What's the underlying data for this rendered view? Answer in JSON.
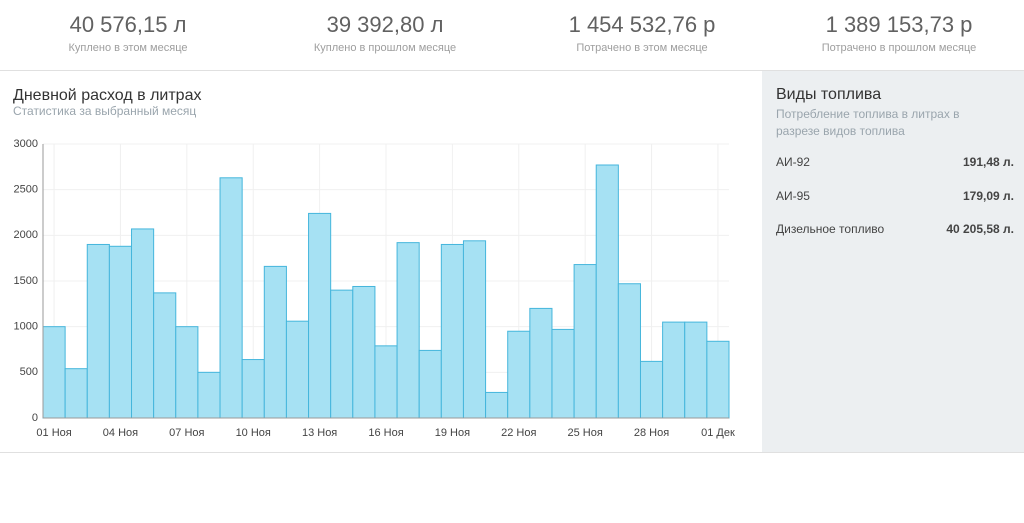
{
  "stats": [
    {
      "value": "40 576,15 л",
      "label": "Куплено в этом месяце"
    },
    {
      "value": "39 392,80 л",
      "label": "Куплено в прошлом месяце"
    },
    {
      "value": "1 454 532,76 р",
      "label": "Потрачено в этом месяце"
    },
    {
      "value": "1 389 153,73 р",
      "label": "Потрачено в прошлом месяце"
    }
  ],
  "chart_data": {
    "type": "bar",
    "title": "Дневной расход в литрах",
    "subtitle": "Статистика за выбранный месяц",
    "categories": [
      "01 Ноя",
      null,
      null,
      "04 Ноя",
      null,
      null,
      "07 Ноя",
      null,
      null,
      "10 Ноя",
      null,
      null,
      "13 Ноя",
      null,
      null,
      "16 Ноя",
      null,
      null,
      "19 Ноя",
      null,
      null,
      "22 Ноя",
      null,
      null,
      "25 Ноя",
      null,
      null,
      "28 Ноя",
      null,
      null,
      "01 Дек"
    ],
    "values": [
      1000,
      540,
      1900,
      1880,
      2070,
      1370,
      1000,
      500,
      2630,
      640,
      1660,
      1060,
      2240,
      1400,
      1440,
      790,
      1920,
      740,
      1900,
      1940,
      280,
      950,
      1200,
      970,
      1680,
      2770,
      1470,
      620,
      1050,
      1050,
      840
    ],
    "color": "#a6e1f3",
    "edge_color": "#45b6dc",
    "ylim": [
      0,
      3000
    ],
    "yticks": [
      0,
      500,
      1000,
      1500,
      2000,
      2500,
      3000
    ],
    "grid": true
  },
  "fuel_panel": {
    "title": "Виды топлива",
    "description": "Потребление топлива в литрах в разрезе видов топлива",
    "rows": [
      [
        "АИ-92",
        "191,48 л."
      ],
      [
        "АИ-95",
        "179,09 л."
      ],
      [
        "Дизельное топливо",
        "40 205,58 л."
      ]
    ]
  }
}
